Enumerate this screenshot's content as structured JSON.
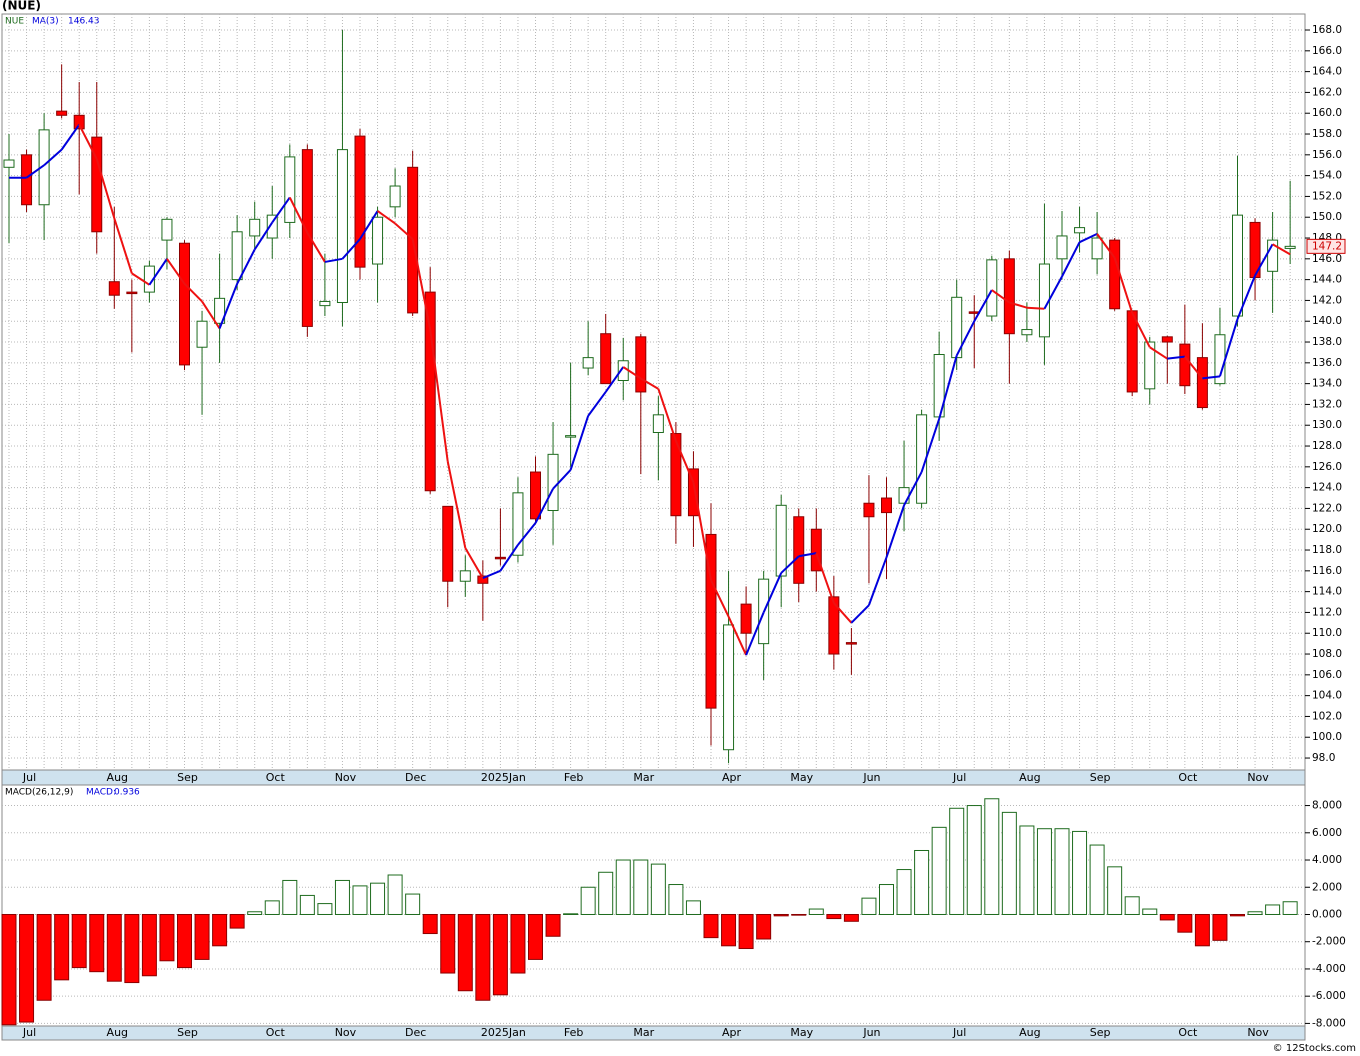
{
  "footer": "© 12Stocks.com",
  "chart_data": [
    {
      "type": "candlestick",
      "title": "(NUE)",
      "symbol": "NUE",
      "categories": [
        null,
        "Jul",
        null,
        null,
        null,
        null,
        "Aug",
        null,
        null,
        null,
        "Sep",
        null,
        null,
        null,
        null,
        "Oct",
        null,
        null,
        null,
        "Nov",
        null,
        null,
        null,
        "Dec",
        null,
        null,
        null,
        null,
        "2025Jan",
        null,
        null,
        null,
        "Feb",
        null,
        null,
        null,
        "Mar",
        null,
        null,
        null,
        null,
        "Apr",
        null,
        null,
        null,
        "May",
        null,
        null,
        null,
        "Jun",
        null,
        null,
        null,
        null,
        "Jul",
        null,
        null,
        null,
        "Aug",
        null,
        null,
        null,
        "Sep",
        null,
        null,
        null,
        null,
        "Oct",
        null,
        null,
        null,
        "Nov",
        null,
        null
      ],
      "open": [
        154.8,
        156,
        151.2,
        160.2,
        159.8,
        157.7,
        143.8,
        142.8,
        142.8,
        147.8,
        147.5,
        137.5,
        139.8,
        144,
        148.2,
        148,
        149.5,
        156.5,
        141.5,
        141.8,
        157.8,
        145.5,
        151,
        154.8,
        142.8,
        122.2,
        115,
        115.5,
        117.3,
        117.5,
        125.5,
        121.8,
        128.9,
        135.5,
        138.8,
        134.3,
        138.5,
        129.3,
        129.2,
        125.8,
        119.5,
        98.8,
        112.8,
        109,
        115.5,
        121.2,
        120,
        113.5,
        109.1,
        122.5,
        123,
        122.5,
        122.5,
        130.8,
        136.5,
        140.9,
        140.5,
        146,
        138.7,
        138.5,
        146,
        148.5,
        146,
        147.8,
        141,
        133.5,
        138.5,
        137.8,
        136.5,
        134,
        140.5,
        149.5,
        144.8,
        147
      ],
      "high": [
        158,
        156.5,
        160,
        164.7,
        163,
        163,
        151,
        144,
        145.8,
        150,
        147.8,
        141,
        146.5,
        150.2,
        151.5,
        153,
        157,
        157,
        146.5,
        168,
        158.5,
        151,
        154.7,
        156.4,
        145.2,
        122.2,
        117.5,
        117,
        122,
        125,
        127,
        130.3,
        136,
        140,
        140.7,
        138.4,
        138.8,
        132.8,
        130.3,
        127.5,
        122.5,
        116,
        114.5,
        116,
        123.3,
        122,
        122,
        115.5,
        110.5,
        125.2,
        125,
        128.5,
        131.5,
        139,
        144,
        142.5,
        146.3,
        146.8,
        141.8,
        151.3,
        150.6,
        151,
        150.5,
        148,
        141,
        138.5,
        138.6,
        141.6,
        139.8,
        141.3,
        155.9,
        149.9,
        150.5,
        153.5
      ],
      "low": [
        147.5,
        150.5,
        147.8,
        159.5,
        152.2,
        146.5,
        141.2,
        137,
        141.8,
        145,
        135.3,
        131,
        136,
        143,
        147,
        146,
        148,
        138.5,
        140.5,
        139.5,
        144,
        141.8,
        150,
        140.5,
        123.4,
        112.5,
        113.5,
        111.2,
        116.5,
        116.8,
        120.5,
        118.5,
        126,
        134.8,
        134,
        132.4,
        125.3,
        124.7,
        118.6,
        118.3,
        99.2,
        97.5,
        108,
        105.5,
        112.5,
        113,
        114,
        106.5,
        106,
        114.8,
        115.2,
        119.8,
        122,
        128.5,
        135.3,
        135.5,
        140,
        134,
        138,
        135.8,
        144,
        146.6,
        144.5,
        141,
        132.8,
        132,
        134,
        133,
        131.5,
        133.8,
        139.5,
        142,
        140.8,
        145.5
      ],
      "close": [
        155.5,
        151.2,
        158.4,
        159.8,
        158.5,
        148.6,
        142.5,
        142.7,
        145.3,
        149.8,
        135.8,
        140,
        142.2,
        148.6,
        149.8,
        150.2,
        155.8,
        139.5,
        141.9,
        156.5,
        145.2,
        150,
        153,
        140.8,
        123.7,
        115,
        116,
        114.8,
        117.2,
        123.5,
        121,
        127.2,
        129,
        136.5,
        134,
        136.2,
        133.2,
        131,
        121.3,
        121.3,
        102.8,
        110.8,
        110,
        115.2,
        122.3,
        114.8,
        116,
        108,
        109,
        121.2,
        121.6,
        124,
        131,
        136.8,
        142.3,
        140.8,
        145.9,
        138.8,
        139.2,
        145.5,
        148.2,
        149,
        148,
        141.2,
        133.2,
        138,
        138,
        133.8,
        131.7,
        138.7,
        150.2,
        144.2,
        147.8,
        147.2
      ],
      "up_color": "#ffffff",
      "up_stroke": "#1e6b1e",
      "down_color": "#ff0000",
      "down_stroke": "#8b0000",
      "ma": {
        "name": "MA(3)",
        "up_color": "#0000dd",
        "down_color": "#ee1111",
        "values": [
          153.8,
          153.8,
          155.0,
          156.5,
          158.9,
          155.6,
          149.9,
          144.6,
          143.5,
          146.0,
          143.6,
          141.9,
          139.3,
          143.6,
          146.9,
          149.5,
          151.9,
          148.5,
          145.7,
          146.0,
          147.9,
          150.6,
          149.4,
          147.9,
          139.2,
          126.5,
          118.2,
          115.3,
          116.0,
          118.5,
          120.6,
          123.9,
          125.7,
          130.9,
          133.2,
          135.6,
          134.5,
          133.5,
          128.5,
          124.5,
          115.1,
          111.6,
          107.9,
          112.0,
          115.8,
          117.4,
          117.7,
          112.9,
          111.0,
          112.7,
          117.3,
          122.3,
          125.5,
          130.6,
          136.7,
          140.0,
          143.0,
          141.8,
          141.3,
          141.2,
          144.3,
          147.6,
          148.4,
          146.1,
          140.8,
          137.5,
          136.4,
          136.6,
          134.5,
          134.7,
          140.2,
          144.4,
          147.4,
          146.43
        ]
      },
      "ylim": [
        96.85,
        169.54
      ],
      "yticks": [
        {
          "value": 98,
          "label": "98.0"
        },
        {
          "value": 100,
          "label": "100.0"
        },
        {
          "value": 102,
          "label": "102.0"
        },
        {
          "value": 104,
          "label": "104.0"
        },
        {
          "value": 106,
          "label": "106.0"
        },
        {
          "value": 108,
          "label": "108.0"
        },
        {
          "value": 110,
          "label": "110.0"
        },
        {
          "value": 112,
          "label": "112.0"
        },
        {
          "value": 114,
          "label": "114.0"
        },
        {
          "value": 116,
          "label": "116.0"
        },
        {
          "value": 118,
          "label": "118.0"
        },
        {
          "value": 120,
          "label": "120.0"
        },
        {
          "value": 122,
          "label": "122.0"
        },
        {
          "value": 124,
          "label": "124.0"
        },
        {
          "value": 126,
          "label": "126.0"
        },
        {
          "value": 128,
          "label": "128.0"
        },
        {
          "value": 130,
          "label": "130.0"
        },
        {
          "value": 132,
          "label": "132.0"
        },
        {
          "value": 134,
          "label": "134.0"
        },
        {
          "value": 136,
          "label": "136.0"
        },
        {
          "value": 138,
          "label": "138.0"
        },
        {
          "value": 140,
          "label": "140.0"
        },
        {
          "value": 142,
          "label": "142.0"
        },
        {
          "value": 144,
          "label": "144.0"
        },
        {
          "value": 146,
          "label": "146.0"
        },
        {
          "value": 148,
          "label": "148.0"
        },
        {
          "value": 150,
          "label": "150.0"
        },
        {
          "value": 152,
          "label": "152.0"
        },
        {
          "value": 154,
          "label": "154.0"
        },
        {
          "value": 156,
          "label": "156.0"
        },
        {
          "value": 158,
          "label": "158.0"
        },
        {
          "value": 160,
          "label": "160.0"
        },
        {
          "value": 162,
          "label": "162.0"
        },
        {
          "value": 164,
          "label": "164.0"
        },
        {
          "value": 166,
          "label": "166.0"
        },
        {
          "value": 168,
          "label": "168.0"
        }
      ],
      "grid": true
    },
    {
      "type": "bar",
      "name": "MACD(26,12,9)",
      "value_prefix": "MACD:",
      "pos_color": "#ffffff",
      "pos_stroke": "#1e6b1e",
      "neg_color": "#ff0000",
      "neg_stroke": "#8b0000",
      "values": [
        -8.1,
        -7.9,
        -6.3,
        -4.8,
        -3.9,
        -4.2,
        -4.9,
        -5.0,
        -4.5,
        -3.4,
        -3.9,
        -3.3,
        -2.3,
        -1.0,
        0.2,
        1.0,
        2.5,
        1.4,
        0.8,
        2.5,
        2.1,
        2.3,
        2.9,
        1.5,
        -1.4,
        -4.3,
        -5.6,
        -6.3,
        -5.9,
        -4.3,
        -3.3,
        -1.6,
        0.05,
        2.0,
        3.1,
        4.0,
        4.0,
        3.7,
        2.2,
        1.0,
        -1.7,
        -2.3,
        -2.5,
        -1.8,
        -0.1,
        -0.05,
        0.4,
        -0.3,
        -0.5,
        1.2,
        2.2,
        3.3,
        4.7,
        6.4,
        7.8,
        8.0,
        8.5,
        7.5,
        6.5,
        6.3,
        6.3,
        6.1,
        5.1,
        3.5,
        1.3,
        0.4,
        -0.4,
        -1.3,
        -2.3,
        -1.9,
        -0.1,
        0.2,
        0.7,
        0.936
      ],
      "ylim": [
        -8.19,
        9.51
      ],
      "yticks": [
        {
          "value": -8,
          "label": "-8.000"
        },
        {
          "value": -6,
          "label": "-6.000"
        },
        {
          "value": -4,
          "label": "-4.000"
        },
        {
          "value": -2,
          "label": "-2.000"
        },
        {
          "value": 0,
          "label": "0.000"
        },
        {
          "value": 2,
          "label": "2.000"
        },
        {
          "value": 4,
          "label": "4.000"
        },
        {
          "value": 6,
          "label": "6.000"
        },
        {
          "value": 8,
          "label": "8.000"
        }
      ],
      "grid": true
    }
  ]
}
